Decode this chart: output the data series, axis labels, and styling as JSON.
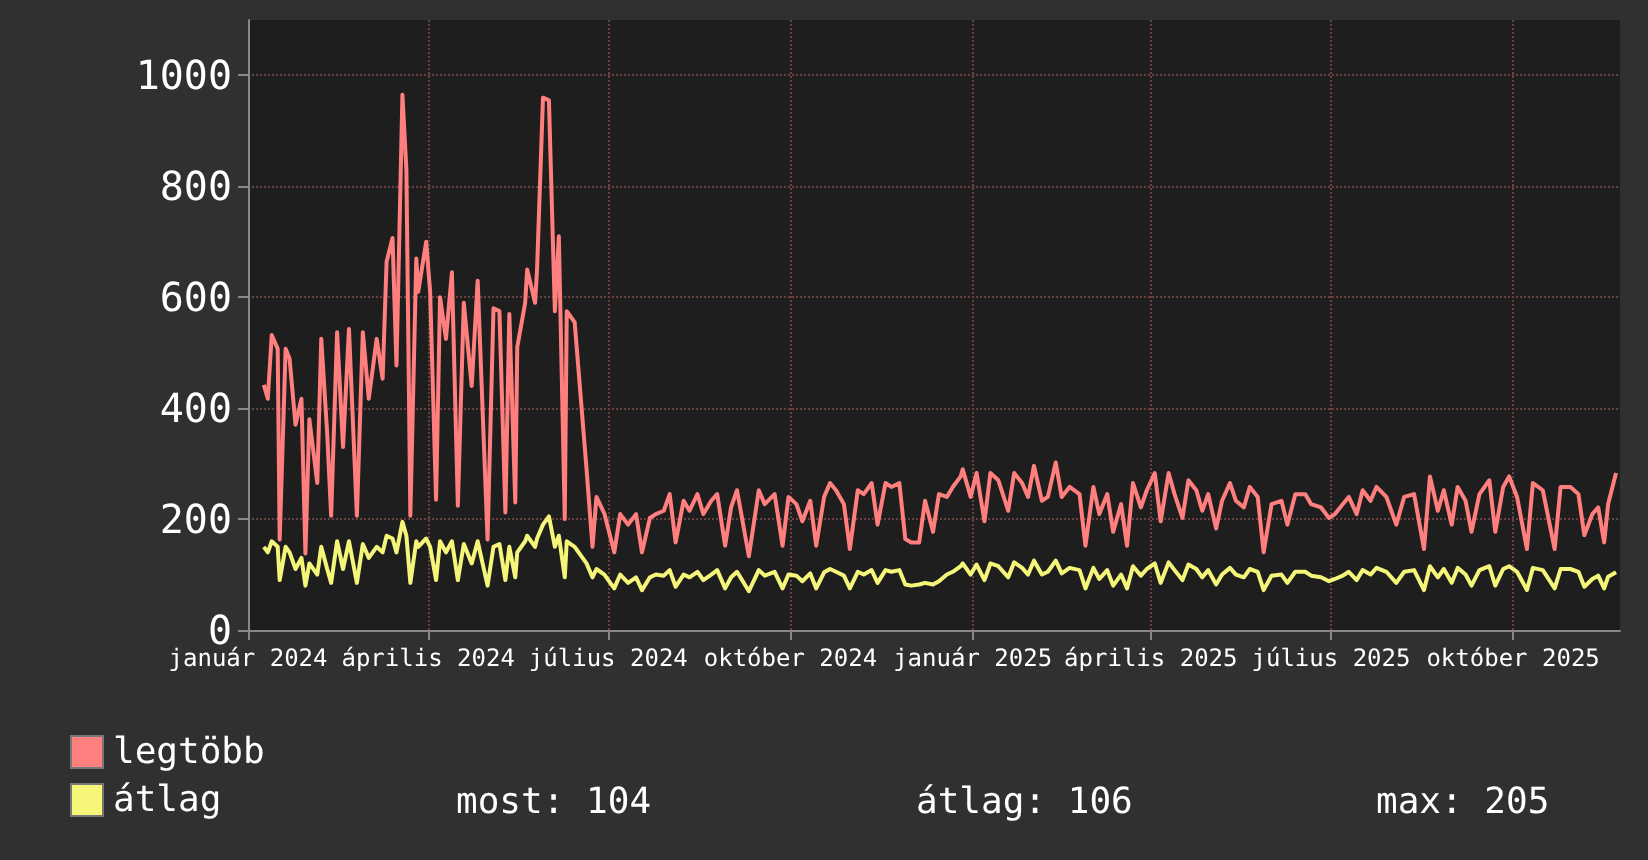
{
  "chart_data": {
    "type": "line",
    "x": [
      "2024-01-09",
      "2024-01-11",
      "2024-01-13",
      "2024-01-16",
      "2024-01-17",
      "2024-01-20",
      "2024-01-22",
      "2024-01-25",
      "2024-01-28",
      "2024-01-30",
      "2024-02-01",
      "2024-02-05",
      "2024-02-07",
      "2024-02-10",
      "2024-02-12",
      "2024-02-15",
      "2024-02-18",
      "2024-02-21",
      "2024-02-25",
      "2024-02-28",
      "2024-03-02",
      "2024-03-06",
      "2024-03-09",
      "2024-03-11",
      "2024-03-14",
      "2024-03-16",
      "2024-03-19",
      "2024-03-21",
      "2024-03-23",
      "2024-03-26",
      "2024-03-27",
      "2024-03-31",
      "2024-04-02",
      "2024-04-05",
      "2024-04-07",
      "2024-04-10",
      "2024-04-13",
      "2024-04-16",
      "2024-04-19",
      "2024-04-23",
      "2024-04-26",
      "2024-05-01",
      "2024-05-04",
      "2024-05-07",
      "2024-05-10",
      "2024-05-12",
      "2024-05-15",
      "2024-05-16",
      "2024-05-20",
      "2024-05-21",
      "2024-05-25",
      "2024-05-26",
      "2024-05-29",
      "2024-06-01",
      "2024-06-04",
      "2024-06-06",
      "2024-06-09",
      "2024-06-10",
      "2024-06-14",
      "2024-06-20",
      "2024-06-23",
      "2024-06-25",
      "2024-06-29",
      "2024-07-04",
      "2024-07-07",
      "2024-07-11",
      "2024-07-15",
      "2024-07-18",
      "2024-07-22",
      "2024-07-25",
      "2024-07-29",
      "2024-08-01",
      "2024-08-04",
      "2024-08-08",
      "2024-08-11",
      "2024-08-15",
      "2024-08-18",
      "2024-08-22",
      "2024-08-25",
      "2024-08-29",
      "2024-09-01",
      "2024-09-04",
      "2024-09-10",
      "2024-09-15",
      "2024-09-18",
      "2024-09-23",
      "2024-09-27",
      "2024-09-30",
      "2024-10-04",
      "2024-10-07",
      "2024-10-11",
      "2024-10-14",
      "2024-10-18",
      "2024-10-21",
      "2024-10-24",
      "2024-10-28",
      "2024-10-31",
      "2024-11-04",
      "2024-11-07",
      "2024-11-11",
      "2024-11-14",
      "2024-11-18",
      "2024-11-21",
      "2024-11-25",
      "2024-11-28",
      "2024-12-01",
      "2024-12-05",
      "2024-12-08",
      "2024-12-12",
      "2024-12-15",
      "2024-12-19",
      "2024-12-22",
      "2024-12-26",
      "2024-12-27",
      "2024-12-31",
      "2025-01-03",
      "2025-01-07",
      "2025-01-10",
      "2025-01-14",
      "2025-01-19",
      "2025-01-22",
      "2025-01-26",
      "2025-01-29",
      "2025-02-01",
      "2025-02-05",
      "2025-02-08",
      "2025-02-12",
      "2025-02-15",
      "2025-02-19",
      "2025-02-24",
      "2025-02-27",
      "2025-03-03",
      "2025-03-06",
      "2025-03-10",
      "2025-03-13",
      "2025-03-17",
      "2025-03-20",
      "2025-03-23",
      "2025-03-27",
      "2025-03-30",
      "2025-04-03",
      "2025-04-06",
      "2025-04-10",
      "2025-04-13",
      "2025-04-17",
      "2025-04-20",
      "2025-04-24",
      "2025-04-27",
      "2025-04-30",
      "2025-05-04",
      "2025-05-07",
      "2025-05-11",
      "2025-05-14",
      "2025-05-18",
      "2025-05-21",
      "2025-05-25",
      "2025-05-28",
      "2025-06-01",
      "2025-06-06",
      "2025-06-09",
      "2025-06-13",
      "2025-06-18",
      "2025-06-21",
      "2025-06-26",
      "2025-06-30",
      "2025-07-03",
      "2025-07-07",
      "2025-07-10",
      "2025-07-14",
      "2025-07-17",
      "2025-07-21",
      "2025-07-24",
      "2025-07-29",
      "2025-08-03",
      "2025-08-07",
      "2025-08-12",
      "2025-08-17",
      "2025-08-20",
      "2025-08-24",
      "2025-08-27",
      "2025-08-31",
      "2025-09-03",
      "2025-09-07",
      "2025-09-10",
      "2025-09-14",
      "2025-09-19",
      "2025-09-22",
      "2025-09-26",
      "2025-09-29",
      "2025-10-03",
      "2025-10-08",
      "2025-10-11",
      "2025-10-16",
      "2025-10-22",
      "2025-10-25",
      "2025-10-30",
      "2025-11-03",
      "2025-11-06",
      "2025-11-10",
      "2025-11-13",
      "2025-11-16",
      "2025-11-18",
      "2025-11-22"
    ],
    "series": [
      {
        "name": "legtöbb",
        "color": "#ff7f7f",
        "values": [
          442,
          417,
          532,
          507,
          163,
          507,
          489,
          370,
          417,
          138,
          380,
          265,
          525,
          354,
          206,
          537,
          330,
          543,
          206,
          537,
          417,
          525,
          453,
          664,
          707,
          477,
          965,
          830,
          206,
          670,
          610,
          700,
          610,
          235,
          600,
          525,
          645,
          224,
          590,
          440,
          630,
          163,
          580,
          575,
          212,
          570,
          230,
          510,
          590,
          650,
          590,
          650,
          960,
          955,
          575,
          710,
          200,
          575,
          555,
          290,
          150,
          240,
          210,
          140,
          209,
          190,
          209,
          140,
          202,
          209,
          215,
          245,
          158,
          233,
          215,
          245,
          209,
          233,
          245,
          152,
          221,
          252,
          133,
          252,
          227,
          245,
          152,
          240,
          227,
          196,
          233,
          152,
          240,
          265,
          252,
          227,
          146,
          252,
          245,
          265,
          190,
          265,
          258,
          265,
          164,
          158,
          158,
          233,
          177,
          245,
          240,
          258,
          277,
          290,
          240,
          283,
          196,
          283,
          270,
          215,
          283,
          265,
          240,
          296,
          233,
          240,
          302,
          240,
          258,
          245,
          152,
          258,
          209,
          245,
          177,
          227,
          152,
          265,
          221,
          252,
          283,
          196,
          283,
          245,
          202,
          270,
          252,
          215,
          245,
          183,
          233,
          265,
          233,
          221,
          258,
          240,
          140,
          227,
          233,
          190,
          245,
          245,
          227,
          221,
          202,
          209,
          227,
          240,
          209,
          252,
          233,
          258,
          240,
          190,
          240,
          245,
          146,
          277,
          215,
          252,
          190,
          258,
          233,
          177,
          245,
          270,
          177,
          258,
          277,
          240,
          146,
          265,
          252,
          146,
          258,
          258,
          245,
          171,
          209,
          221,
          158,
          227,
          283
        ]
      },
      {
        "name": "átlag",
        "color": "#f5f57a",
        "values": [
          150,
          140,
          160,
          150,
          90,
          150,
          140,
          110,
          130,
          80,
          120,
          100,
          150,
          110,
          85,
          160,
          110,
          160,
          85,
          155,
          130,
          150,
          140,
          170,
          165,
          140,
          195,
          170,
          85,
          160,
          150,
          165,
          150,
          90,
          160,
          140,
          160,
          90,
          155,
          120,
          160,
          80,
          150,
          155,
          90,
          150,
          95,
          140,
          160,
          170,
          150,
          165,
          190,
          205,
          150,
          170,
          95,
          160,
          150,
          120,
          95,
          110,
          100,
          75,
          100,
          85,
          95,
          72,
          95,
          100,
          98,
          108,
          78,
          100,
          95,
          105,
          90,
          100,
          108,
          75,
          95,
          105,
          70,
          108,
          98,
          105,
          75,
          100,
          98,
          88,
          102,
          75,
          104,
          110,
          105,
          98,
          75,
          105,
          100,
          108,
          85,
          108,
          105,
          108,
          82,
          80,
          82,
          85,
          82,
          88,
          100,
          105,
          115,
          120,
          100,
          118,
          90,
          120,
          115,
          95,
          122,
          112,
          100,
          125,
          100,
          105,
          125,
          102,
          112,
          108,
          75,
          112,
          92,
          108,
          80,
          100,
          75,
          115,
          98,
          110,
          120,
          85,
          122,
          108,
          90,
          118,
          110,
          95,
          108,
          82,
          100,
          112,
          100,
          95,
          110,
          105,
          72,
          98,
          100,
          85,
          105,
          105,
          98,
          95,
          88,
          92,
          98,
          105,
          90,
          108,
          100,
          112,
          105,
          85,
          105,
          108,
          72,
          115,
          95,
          110,
          85,
          112,
          100,
          80,
          108,
          115,
          80,
          110,
          115,
          105,
          72,
          112,
          108,
          75,
          110,
          110,
          105,
          78,
          92,
          98,
          75,
          96,
          104
        ]
      }
    ],
    "xlim": [
      "2024-01-01",
      "2025-11-24"
    ],
    "xticks": [
      {
        "value": "2024-01-01",
        "label": "január 2024"
      },
      {
        "value": "2024-04-01",
        "label": "április 2024"
      },
      {
        "value": "2024-07-01",
        "label": "július 2024"
      },
      {
        "value": "2024-10-01",
        "label": "október 2024"
      },
      {
        "value": "2025-01-01",
        "label": "január 2025"
      },
      {
        "value": "2025-04-01",
        "label": "április 2025"
      },
      {
        "value": "2025-07-01",
        "label": "július 2025"
      },
      {
        "value": "2025-10-01",
        "label": "október 2025"
      }
    ],
    "ylim": [
      0,
      1100
    ],
    "yticks": [
      0,
      200,
      400,
      600,
      800,
      1000
    ],
    "grid": true,
    "legend": "bottom left",
    "annotations": [
      "most: 104",
      "átlag: 106",
      "max: 205"
    ]
  }
}
